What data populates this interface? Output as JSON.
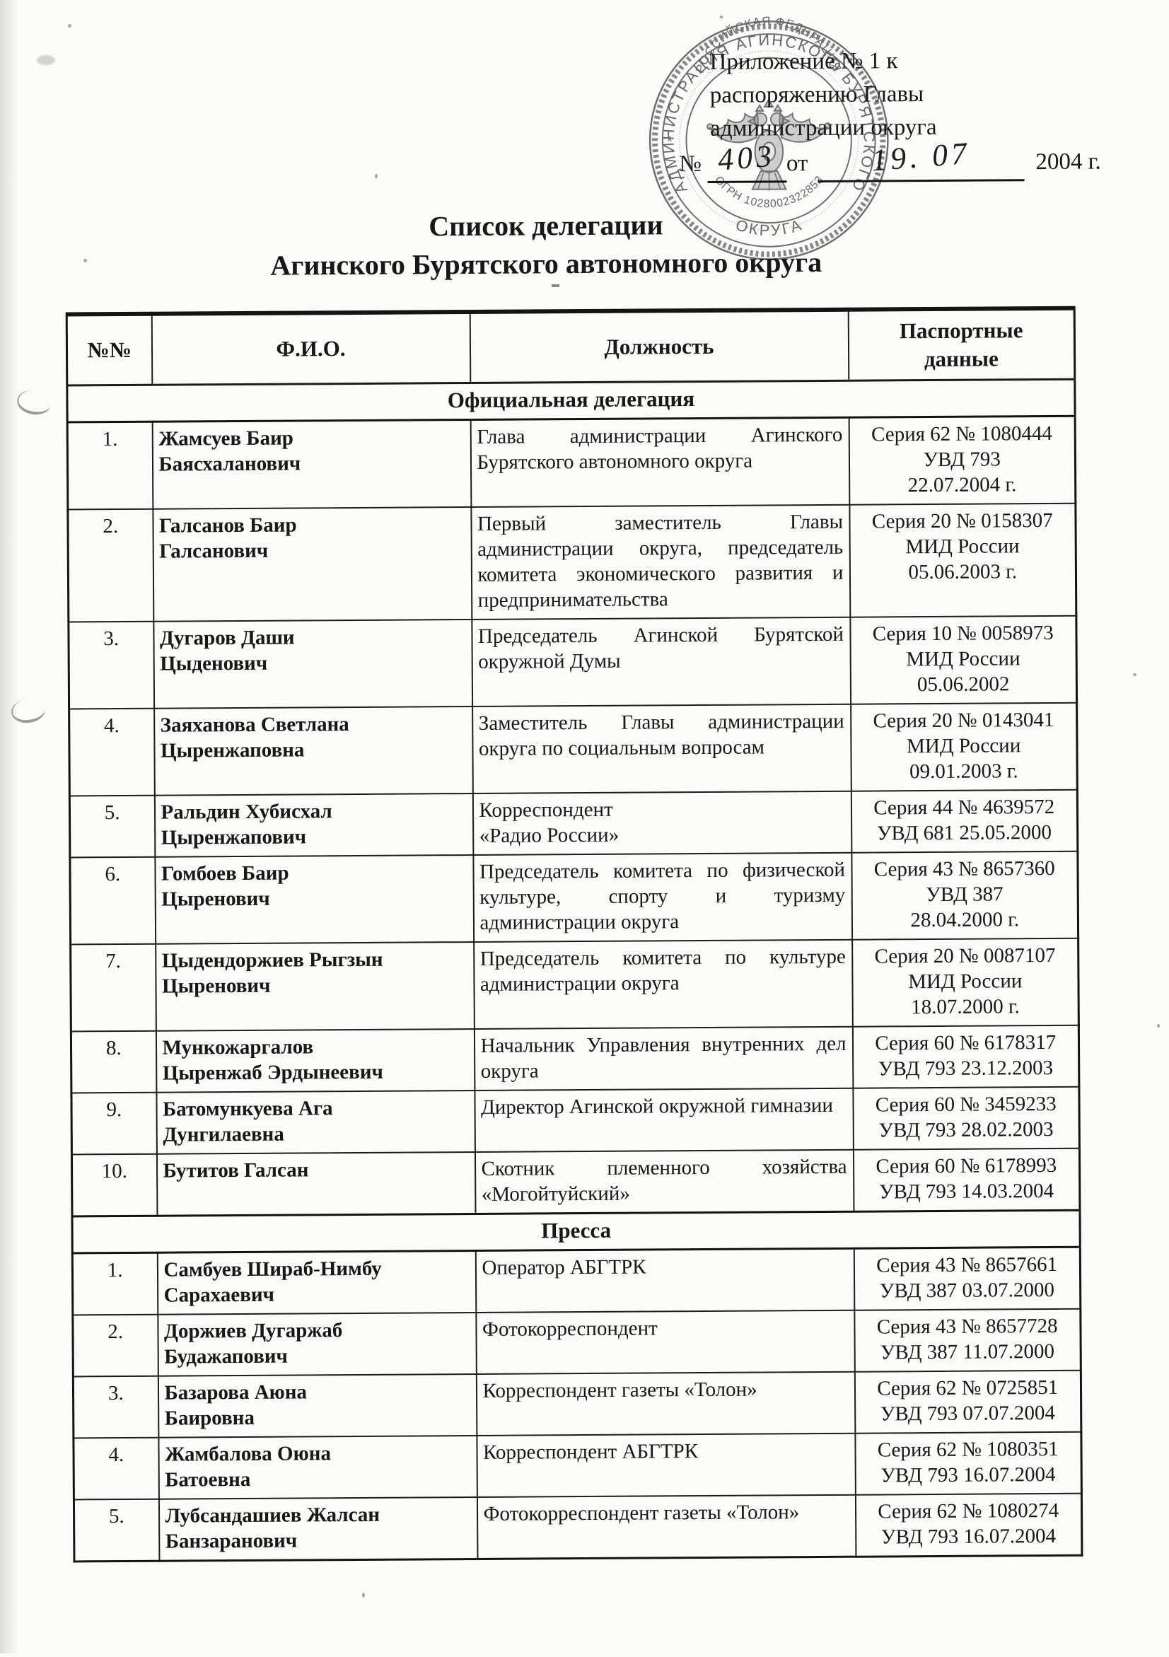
{
  "document": {
    "appendix": {
      "lines": [
        "Приложение № 1 к",
        "распоряжению Главы",
        "администрации округа"
      ],
      "order_no_label": "№",
      "order_no_value": "403",
      "order_from_label": "от",
      "order_date_value": "19. 07",
      "order_year_label": "2004 г."
    },
    "title_line1": "Список делегации",
    "title_line2": "Агинского Бурятского автономного округа"
  },
  "stamp": {
    "outer_text": "АДМИНИСТРАЦИЯ АГИНСКОГО БУРЯТСКОГО",
    "outer_bottom_text": "ОКРУГА",
    "inner_top_text": "РОССИЙСКАЯ ФЕДЕРАЦИЯ",
    "ogrn_text": "ОГРН 1028002322853",
    "separator": "*",
    "emblem": "double-headed-eagle"
  },
  "table": {
    "headers": [
      "№№",
      "Ф.И.О.",
      "Должность",
      "Паспортные\nданные"
    ],
    "sections": [
      {
        "title": "Официальная делегация",
        "rows": [
          {
            "num": "1.",
            "name": "Жамсуев Баир\nБаясхаланович",
            "position": "Глава администрации Агинского Бурятского автономного округа",
            "passport": "Серия 62 № 1080444\nУВД 793\n22.07.2004 г."
          },
          {
            "num": "2.",
            "name": "Галсанов Баир\nГалсанович",
            "position": "Первый заместитель Главы администрации округа, председатель комитета экономического развития и предпринимательства",
            "passport": "Серия 20 № 0158307\nМИД России\n05.06.2003 г."
          },
          {
            "num": "3.",
            "name": "Дугаров Даши\nЦыденович",
            "position": "Председатель Агинской Бурятской окружной Думы",
            "passport": "Серия 10 № 0058973\nМИД России\n05.06.2002"
          },
          {
            "num": "4.",
            "name": "Заяханова Светлана\nЦыренжаповна",
            "position": "Заместитель Главы администрации округа по социальным вопросам",
            "passport": "Серия 20 № 0143041\nМИД России\n09.01.2003 г."
          },
          {
            "num": "5.",
            "name": "Ральдин Хубисхал\nЦыренжапович",
            "position": "Корреспондент\n«Радио России»",
            "passport": "Серия 44 № 4639572\nУВД 681 25.05.2000"
          },
          {
            "num": "6.",
            "name": "Гомбоев Баир\nЦыренович",
            "position": "Председатель комитета по физической культуре, спорту и туризму администрации округа",
            "passport": "Серия 43 № 8657360\nУВД 387\n28.04.2000 г."
          },
          {
            "num": "7.",
            "name": "Цыдендоржиев Рыгзын\nЦыренович",
            "position": "Председатель комитета по культуре администрации округа",
            "passport": "Серия 20 № 0087107\nМИД России\n18.07.2000 г."
          },
          {
            "num": "8.",
            "name": "Мункожаргалов\nЦыренжаб Эрдынеевич",
            "position": "Начальник Управления внутренних дел округа",
            "passport": "Серия 60 № 6178317\nУВД 793 23.12.2003"
          },
          {
            "num": "9.",
            "name": "Батомункуева Ага\nДунгилаевна",
            "position": "Директор Агинской окружной гимназии",
            "passport": "Серия 60 № 3459233\nУВД 793 28.02.2003"
          },
          {
            "num": "10.",
            "name": "Бутитов Галсан",
            "position": "Скотник племенного хозяйства «Могойтуйский»",
            "passport": "Серия 60 № 6178993\nУВД 793 14.03.2004"
          }
        ]
      },
      {
        "title": "Пресса",
        "rows": [
          {
            "num": "1.",
            "name": "Самбуев Шираб-Нимбу\nСарахаевич",
            "position": "Оператор АБГТРК",
            "passport": "Серия 43 № 8657661\nУВД 387 03.07.2000"
          },
          {
            "num": "2.",
            "name": "Доржиев Дугаржаб\nБудажапович",
            "position": "Фотокорреспондент",
            "passport": "Серия 43 № 8657728\nУВД 387 11.07.2000"
          },
          {
            "num": "3.",
            "name": "Базарова Аюна\nБаировна",
            "position": "Корреспондент газеты «Толон»",
            "passport": "Серия 62 № 0725851\nУВД 793 07.07.2004"
          },
          {
            "num": "4.",
            "name": "Жамбалова Оюна\nБатоевна",
            "position": "Корреспондент АБГТРК",
            "passport": "Серия 62 № 1080351\nУВД 793 16.07.2004"
          },
          {
            "num": "5.",
            "name": "Лубсандашиев Жалсан\nБанзаранович",
            "position": "Фотокорреспондент газеты «Толон»",
            "passport": "Серия 62 № 1080274\nУВД 793 16.07.2004"
          }
        ]
      }
    ]
  }
}
